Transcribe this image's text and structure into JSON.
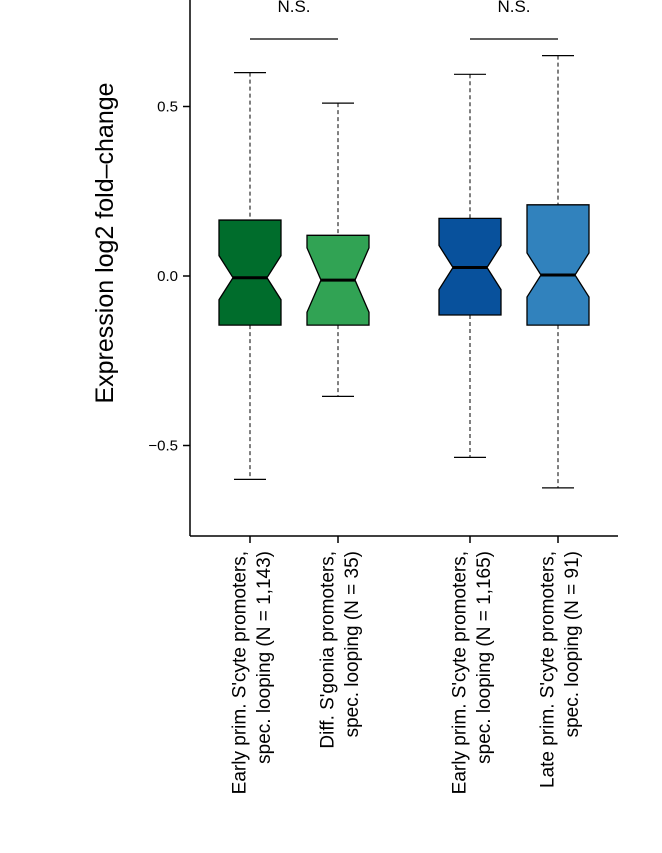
{
  "chart_data": {
    "type": "box",
    "ylabel": "Expression log2 fold–change",
    "ylim": [
      -0.76,
      0.82
    ],
    "yticks": [
      {
        "value": 0.5,
        "label": "0.5"
      },
      {
        "value": 0.0,
        "label": "0.0"
      },
      {
        "value": -0.5,
        "label": "−0.5"
      }
    ],
    "boxes": [
      {
        "label_line1": "Early prim. S'cyte promoters,",
        "label_line2": "spec. looping (N = 1,143)",
        "color": "#006d2c",
        "whisker_low": -0.6,
        "q1": -0.145,
        "median": -0.005,
        "q3": 0.165,
        "whisker_high": 0.6,
        "notch_half": 0.065
      },
      {
        "label_line1": "Diff. S'gonia promoters,",
        "label_line2": "spec. looping (N = 35)",
        "color": "#31a354",
        "whisker_low": -0.355,
        "q1": -0.145,
        "median": -0.012,
        "q3": 0.12,
        "whisker_high": 0.51,
        "notch_half": 0.095
      },
      {
        "label_line1": "Early prim. S'cyte promoters,",
        "label_line2": "spec. looping (N = 1,165)",
        "color": "#08519c",
        "whisker_low": -0.535,
        "q1": -0.115,
        "median": 0.025,
        "q3": 0.17,
        "whisker_high": 0.595,
        "notch_half": 0.065
      },
      {
        "label_line1": "Late prim. S'cyte promoters,",
        "label_line2": "spec. looping (N = 91)",
        "color": "#3182bd",
        "whisker_low": -0.625,
        "q1": -0.145,
        "median": 0.003,
        "q3": 0.21,
        "whisker_high": 0.65,
        "notch_half": 0.065
      }
    ],
    "comparisons": [
      {
        "from": 0,
        "to": 1,
        "label": "N.S."
      },
      {
        "from": 2,
        "to": 3,
        "label": "N.S."
      }
    ]
  }
}
